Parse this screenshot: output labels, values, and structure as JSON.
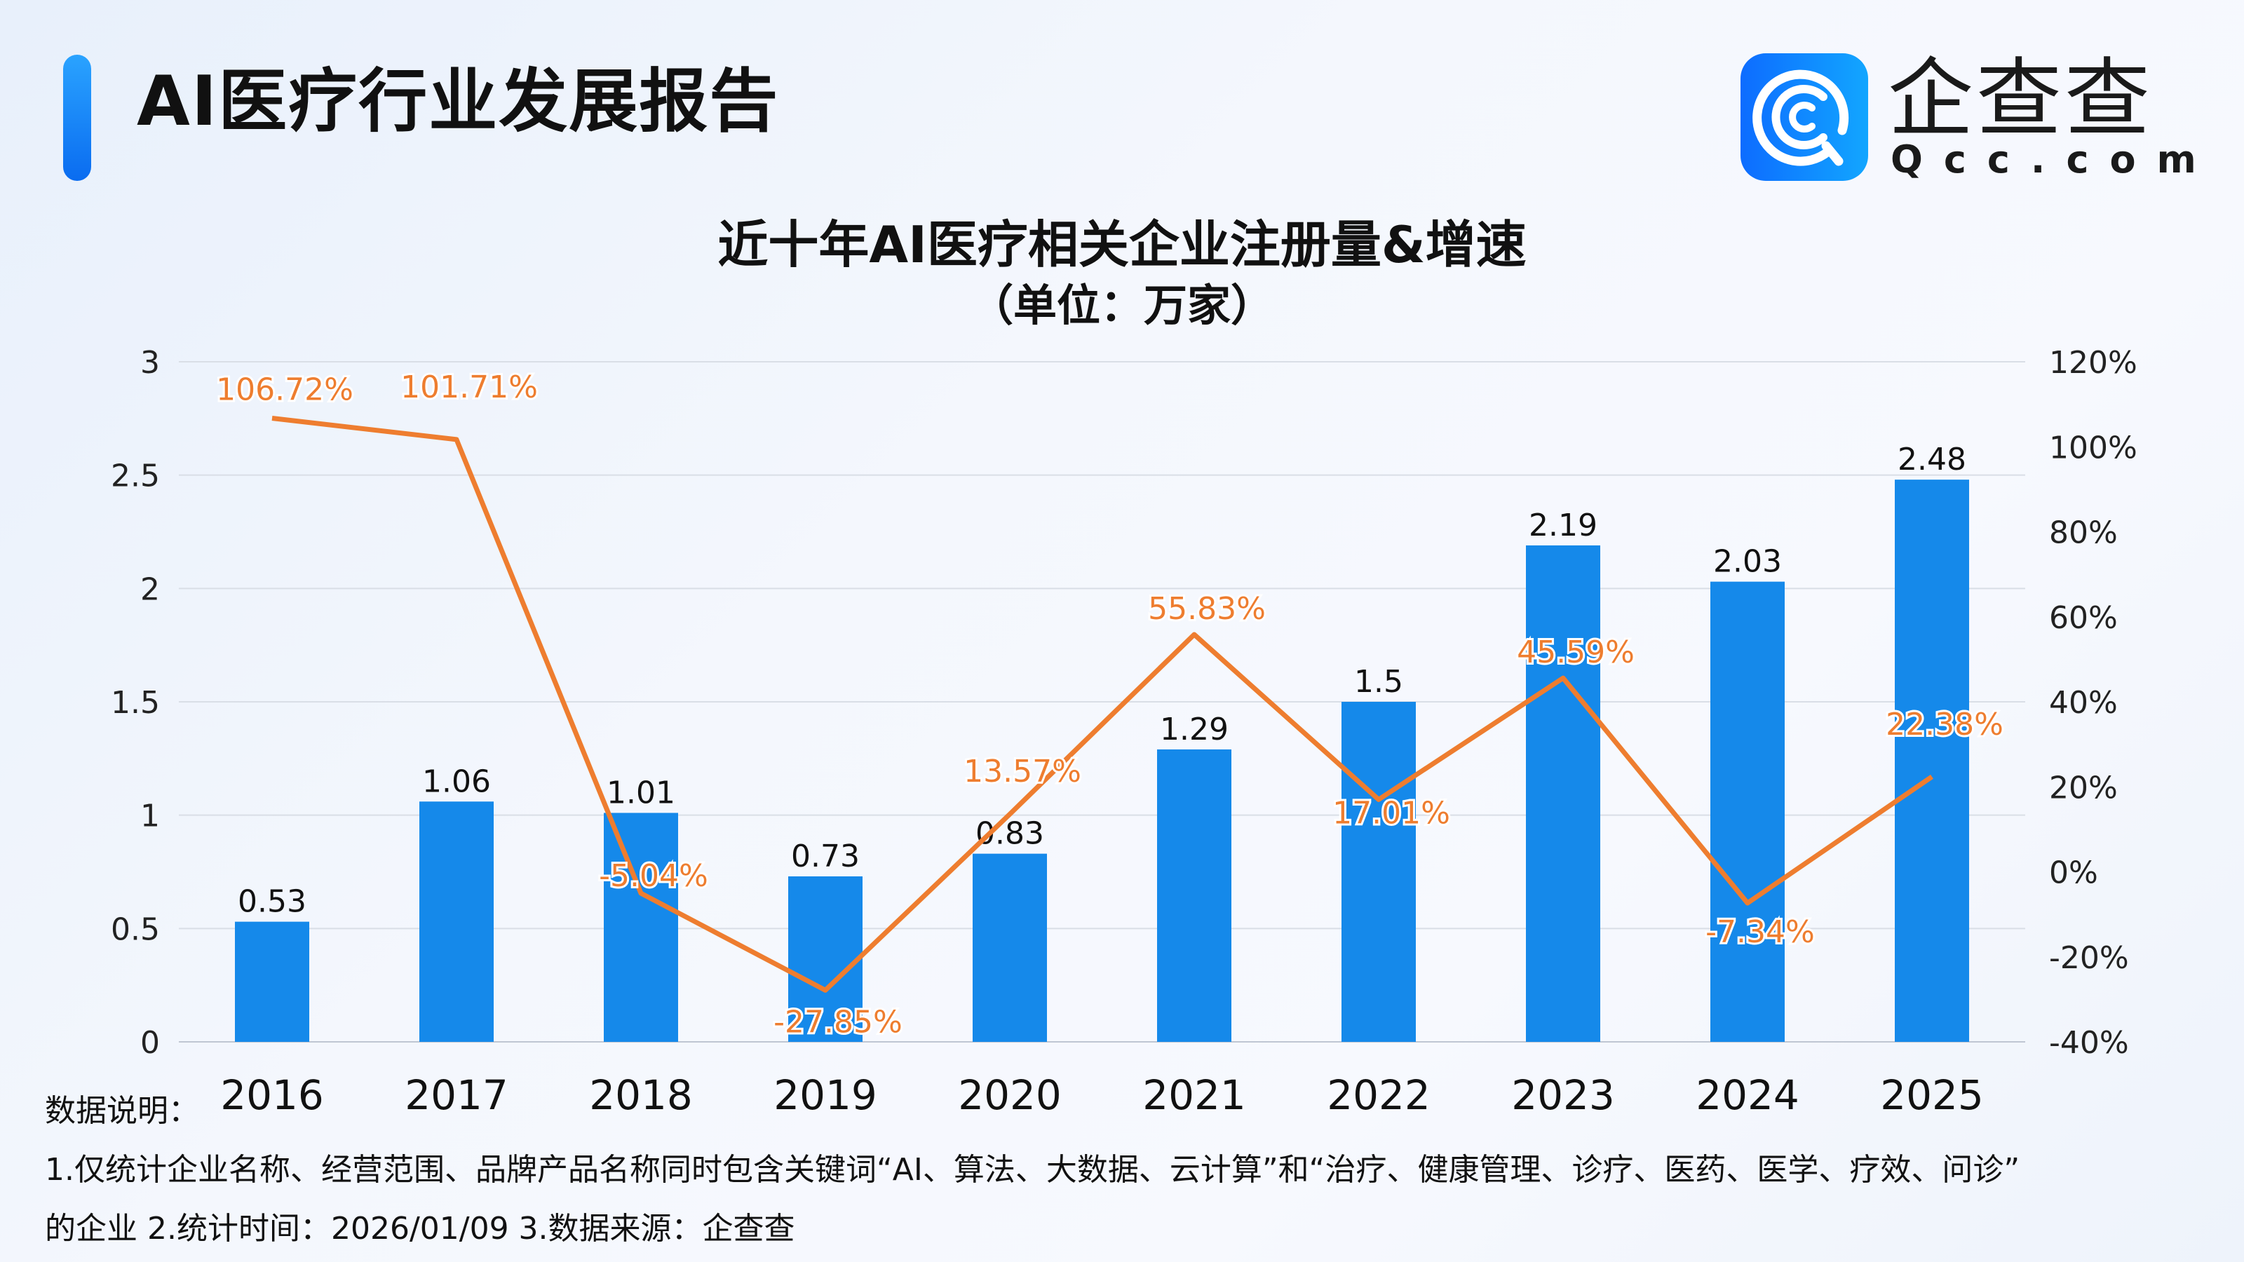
{
  "header": {
    "title": "AI医疗行业发展报告"
  },
  "logo": {
    "name_cn": "企查查",
    "name_en": "Qcc.com"
  },
  "colors": {
    "bar": "#1589ea",
    "line": "#ee7d2f",
    "accent": "#0a6cf0"
  },
  "chart_data": {
    "type": "bar",
    "title": "近十年AI医疗相关企业注册量&增速",
    "subtitle": "（单位：万家）",
    "categories": [
      "2016",
      "2017",
      "2018",
      "2019",
      "2020",
      "2021",
      "2022",
      "2023",
      "2024",
      "2025"
    ],
    "series": [
      {
        "type": "bar",
        "axis": "left",
        "values": [
          0.53,
          1.06,
          1.01,
          0.73,
          0.83,
          1.29,
          1.5,
          2.19,
          2.03,
          2.48
        ],
        "labels": [
          "0.53",
          "1.06",
          "1.01",
          "0.73",
          "0.83",
          "1.29",
          "1.5",
          "2.19",
          "2.03",
          "2.48"
        ]
      },
      {
        "type": "line",
        "axis": "right",
        "values": [
          106.72,
          101.71,
          -5.04,
          -27.85,
          13.57,
          55.83,
          17.01,
          45.59,
          -7.34,
          22.38
        ],
        "labels": [
          "106.72%",
          "101.71%",
          "-5.04%",
          "-27.85%",
          "13.57%",
          "55.83%",
          "17.01%",
          "45.59%",
          "-7.34%",
          "22.38%"
        ]
      }
    ],
    "left_axis": {
      "ylim": [
        0,
        3
      ],
      "ticks": [
        "0",
        "0.5",
        "1",
        "1.5",
        "2",
        "2.5",
        "3"
      ]
    },
    "right_axis": {
      "ylim": [
        -40,
        120
      ],
      "ticks": [
        "-40%",
        "-20%",
        "0%",
        "20%",
        "40%",
        "60%",
        "80%",
        "100%",
        "120%"
      ]
    },
    "grid": true,
    "legend": "none"
  },
  "notes": {
    "heading": "数据说明：",
    "line1": "1.仅统计企业名称、经营范围、品牌产品名称同时包含关键词“AI、算法、大数据、云计算”和“治疗、健康管理、诊疗、医药、医学、疗效、问诊”",
    "line2": "的企业   2.统计时间：2026/01/09   3.数据来源：企查查"
  }
}
